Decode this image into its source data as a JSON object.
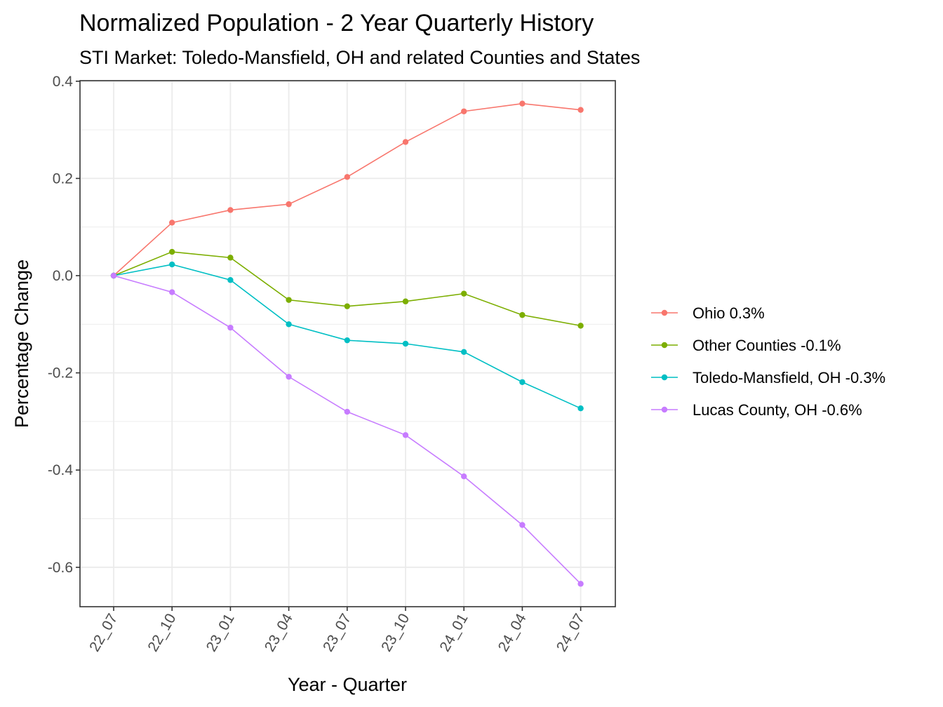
{
  "chart_data": {
    "type": "line",
    "title": "Normalized Population - 2 Year Quarterly History",
    "subtitle": "STI Market: Toledo-Mansfield, OH and related Counties and States",
    "xlabel": "Year - Quarter",
    "ylabel": "Percentage Change",
    "categories": [
      "22_07",
      "22_10",
      "23_01",
      "23_04",
      "23_07",
      "23_10",
      "24_01",
      "24_04",
      "24_07"
    ],
    "ylim": [
      -0.68,
      0.4
    ],
    "yticks": [
      0.4,
      0.2,
      0.0,
      -0.2,
      -0.4,
      -0.6
    ],
    "ytick_labels": [
      "0.4",
      "0.2",
      "0.0",
      "-0.2",
      "-0.4",
      "-0.6"
    ],
    "grid": true,
    "legend_position": "right",
    "series": [
      {
        "name": "Ohio 0.3%",
        "color": "#F8766D",
        "values": [
          0.0,
          0.109,
          0.135,
          0.147,
          0.203,
          0.275,
          0.338,
          0.354,
          0.341
        ]
      },
      {
        "name": "Other Counties -0.1%",
        "color": "#7CAE00",
        "values": [
          0.0,
          0.049,
          0.037,
          -0.05,
          -0.063,
          -0.053,
          -0.037,
          -0.081,
          -0.103
        ]
      },
      {
        "name": "Toledo-Mansfield, OH -0.3%",
        "color": "#00BFC4",
        "values": [
          0.0,
          0.023,
          -0.009,
          -0.1,
          -0.133,
          -0.14,
          -0.157,
          -0.219,
          -0.273
        ]
      },
      {
        "name": "Lucas County, OH -0.6%",
        "color": "#C77CFF",
        "values": [
          0.0,
          -0.034,
          -0.107,
          -0.208,
          -0.28,
          -0.328,
          -0.413,
          -0.513,
          -0.634
        ]
      }
    ]
  }
}
